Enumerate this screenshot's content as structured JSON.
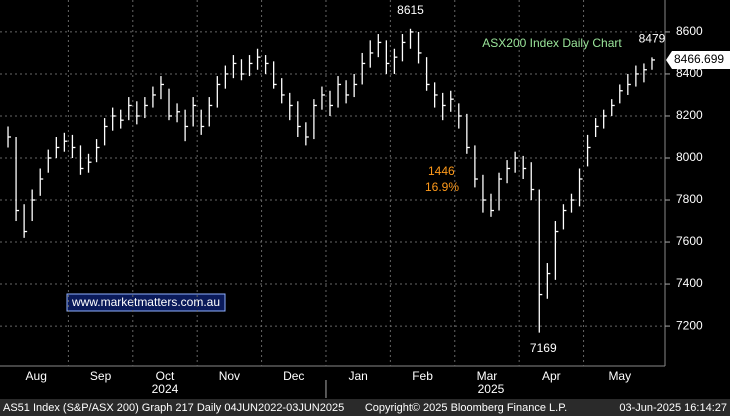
{
  "chart_data": {
    "type": "ohlc",
    "title": "ASX200 Index Daily Chart",
    "watermark": "www.marketmatters.com.au",
    "categories": [
      "Aug",
      null,
      null,
      null,
      null,
      null,
      null,
      null,
      "Sep",
      null,
      null,
      null,
      null,
      null,
      null,
      null,
      "Oct",
      null,
      null,
      null,
      null,
      null,
      null,
      null,
      "Nov",
      null,
      null,
      null,
      null,
      null,
      null,
      null,
      "Dec",
      null,
      null,
      null,
      null,
      null,
      null,
      null,
      "Jan",
      null,
      null,
      null,
      null,
      null,
      null,
      null,
      "Feb",
      null,
      null,
      null,
      null,
      null,
      null,
      null,
      "Mar",
      null,
      null,
      null,
      null,
      null,
      null,
      null,
      "Apr",
      null,
      null,
      null,
      null,
      null,
      null,
      null,
      "May",
      null,
      null,
      null,
      null,
      null,
      null,
      null,
      null
    ],
    "year_categories": [
      "2024",
      null,
      null,
      null,
      null,
      null,
      null,
      null,
      null,
      null,
      null,
      null,
      null,
      null,
      null,
      null,
      null,
      null,
      null,
      null,
      null,
      null,
      null,
      null,
      null,
      null,
      null,
      null,
      null,
      null,
      null,
      null,
      null,
      null,
      null,
      null,
      null,
      null,
      null,
      null,
      "2025",
      null,
      null,
      null,
      null,
      null,
      null,
      null,
      null,
      null,
      null,
      null,
      null,
      null,
      null,
      null,
      null,
      null,
      null,
      null,
      null,
      null,
      null,
      null,
      null,
      null,
      null,
      null,
      null,
      null,
      null,
      null,
      null,
      null,
      null,
      null,
      null,
      null,
      null,
      null,
      null
    ],
    "series": [
      {
        "name": "AS51 Index",
        "color": "#ffffff",
        "high": [
          8150,
          8100,
          7780,
          7850,
          7950,
          8040,
          8100,
          8120,
          8110,
          8060,
          8020,
          8090,
          8190,
          8240,
          8230,
          8290,
          8270,
          8290,
          8340,
          8390,
          8330,
          8260,
          8230,
          8290,
          8230,
          8290,
          8390,
          8440,
          8490,
          8470,
          8490,
          8520,
          8490,
          8460,
          8380,
          8310,
          8270,
          8170,
          8280,
          8340,
          8320,
          8390,
          8370,
          8400,
          8500,
          8560,
          8590,
          8560,
          8520,
          8590,
          8615,
          8600,
          8480,
          8360,
          8310,
          8320,
          8260,
          8210,
          8060,
          7920,
          7830,
          7930,
          7990,
          8030,
          8010,
          7980,
          7850,
          7500,
          7700,
          7780,
          7830,
          7950,
          8110,
          8190,
          8230,
          8280,
          8350,
          8400,
          8440,
          8450,
          8479
        ],
        "low": [
          8050,
          7700,
          7620,
          7700,
          7820,
          7930,
          8000,
          8030,
          8000,
          7920,
          7930,
          7980,
          8060,
          8130,
          8140,
          8180,
          8160,
          8190,
          8240,
          8280,
          8180,
          8170,
          8080,
          8150,
          8110,
          8150,
          8240,
          8330,
          8380,
          8370,
          8390,
          8420,
          8400,
          8330,
          8260,
          8180,
          8100,
          8060,
          8090,
          8230,
          8200,
          8240,
          8260,
          8290,
          8350,
          8430,
          8480,
          8400,
          8400,
          8460,
          8520,
          8450,
          8320,
          8240,
          8180,
          8220,
          8140,
          8020,
          7860,
          7740,
          7720,
          7750,
          7880,
          7930,
          7900,
          7800,
          7169,
          7330,
          7420,
          7660,
          7740,
          7770,
          7960,
          8100,
          8140,
          8200,
          8260,
          8300,
          8340,
          8360,
          8420
        ],
        "close": [
          8100,
          7750,
          7650,
          7800,
          7900,
          8000,
          8050,
          8080,
          8050,
          7950,
          7980,
          8050,
          8150,
          8200,
          8180,
          8250,
          8200,
          8250,
          8300,
          8350,
          8200,
          8220,
          8150,
          8250,
          8150,
          8250,
          8350,
          8400,
          8450,
          8400,
          8450,
          8480,
          8450,
          8350,
          8300,
          8250,
          8150,
          8100,
          8250,
          8300,
          8250,
          8350,
          8300,
          8350,
          8450,
          8500,
          8550,
          8450,
          8480,
          8550,
          8600,
          8500,
          8350,
          8300,
          8250,
          8280,
          8200,
          8050,
          7900,
          7800,
          7750,
          7900,
          7950,
          8000,
          7950,
          7850,
          7350,
          7450,
          7650,
          7750,
          7800,
          7900,
          8050,
          8150,
          8200,
          8250,
          8320,
          8350,
          8400,
          8420,
          8466.699
        ]
      }
    ],
    "peak_labels": [
      8615,
      8479
    ],
    "trough_labels": [
      7169
    ],
    "drawdown": {
      "value": 1446,
      "percent": {
        "value": 16.9,
        "label": "16.9%"
      }
    },
    "ylim": [
      7010,
      8752
    ],
    "yticks": [
      7200,
      7400,
      7600,
      7800,
      8000,
      8200,
      8400,
      8600
    ],
    "grid": true,
    "footer": {
      "left": "AS51 Index (S&P/ASX 200) Graph 217  Daily 04JUN2022-03JUN2025",
      "center": "Copyright© 2025 Bloomberg Finance L.P.",
      "right": "03-Jun-2025 16:14:27"
    }
  }
}
